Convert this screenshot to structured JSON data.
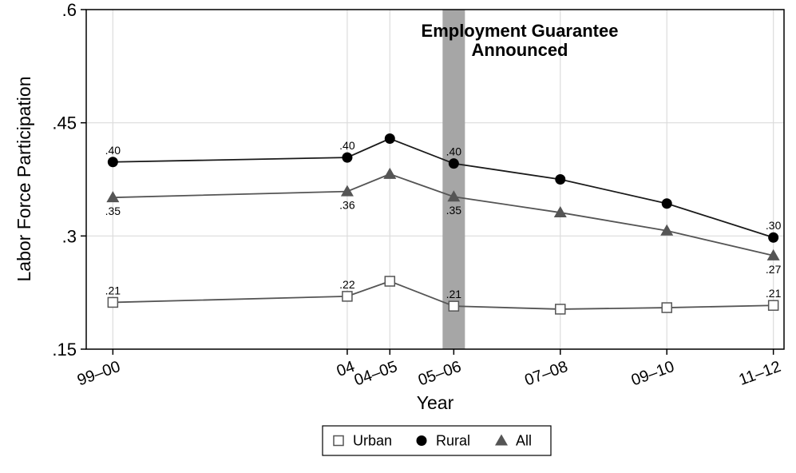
{
  "chart_data": {
    "type": "line",
    "xlabel": "Year",
    "ylabel": "Labor Force Participation",
    "ylim": [
      0.15,
      0.6
    ],
    "yticks": [
      0.15,
      0.3,
      0.45,
      0.6
    ],
    "ytick_labels": [
      ".15",
      ".3",
      ".45",
      ".6"
    ],
    "grid": true,
    "legend_position": "bottom",
    "categories": [
      "99–00",
      "04",
      "04–05",
      "05–06",
      "07–08",
      "09–10",
      "11–12"
    ],
    "x_numeric": [
      1999.5,
      2003.9,
      2004.7,
      2005.9,
      2007.9,
      2009.9,
      2011.9
    ],
    "annotation": {
      "lines": [
        "Employment Guarantee",
        "Announced"
      ],
      "x_category": "05–06"
    },
    "series": [
      {
        "name": "Urban",
        "marker": "hollow-square",
        "color": "#555555",
        "values": [
          0.212,
          0.22,
          0.24,
          0.207,
          0.203,
          0.205,
          0.208
        ],
        "labels": [
          ".21",
          ".22",
          "",
          ".21",
          "",
          "",
          ".21"
        ],
        "label_pos": [
          "above",
          "above",
          "",
          "above",
          "",
          "",
          "above"
        ]
      },
      {
        "name": "Rural",
        "marker": "filled-circle",
        "color": "#1a1a1a",
        "values": [
          0.398,
          0.404,
          0.429,
          0.396,
          0.375,
          0.343,
          0.298
        ],
        "labels": [
          ".40",
          ".40",
          "",
          ".40",
          "",
          "",
          ".30"
        ],
        "label_pos": [
          "above",
          "above",
          "",
          "above",
          "",
          "",
          "above"
        ]
      },
      {
        "name": "All",
        "marker": "filled-triangle",
        "color": "#555555",
        "values": [
          0.351,
          0.359,
          0.382,
          0.352,
          0.331,
          0.307,
          0.274
        ],
        "labels": [
          ".35",
          ".36",
          "",
          ".35",
          "",
          "",
          ".27"
        ],
        "label_pos": [
          "below",
          "below",
          "",
          "below",
          "",
          "",
          "below"
        ]
      }
    ]
  }
}
